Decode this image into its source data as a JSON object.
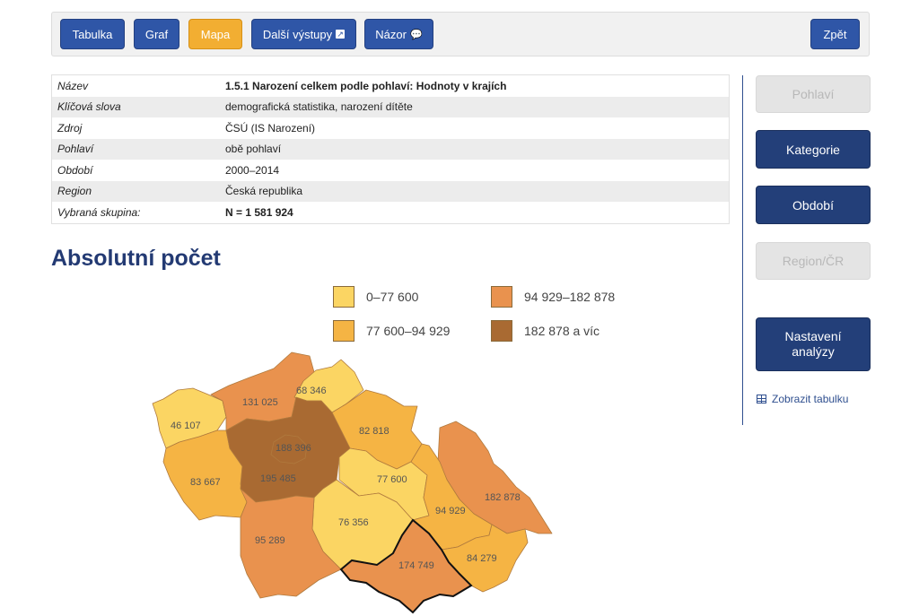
{
  "toolbar": {
    "tabulka": "Tabulka",
    "graf": "Graf",
    "mapa": "Mapa",
    "dalsi": "Další výstupy",
    "nazor": "Názor",
    "zpet": "Zpět"
  },
  "info": [
    {
      "key": "Název",
      "value": "1.5.1 Narození celkem podle pohlaví: Hodnoty v krajích"
    },
    {
      "key": "Klíčová slova",
      "value": "demografická statistika, narození dítěte"
    },
    {
      "key": "Zdroj",
      "value": "ČSÚ (IS Narození)"
    },
    {
      "key": "Pohlaví",
      "value": "obě pohlaví"
    },
    {
      "key": "Období",
      "value": "2000–2014"
    },
    {
      "key": "Region",
      "value": "Česká republika"
    },
    {
      "key": "Vybraná skupina:",
      "value": "N = 1 581 924"
    }
  ],
  "heading": "Absolutní počet",
  "legend": [
    {
      "label": "0–77 600",
      "color": "#fbd563"
    },
    {
      "label": "94 929–182 878",
      "color": "#e9924e"
    },
    {
      "label": "77 600–94 929",
      "color": "#f5b444"
    },
    {
      "label": "182 878 a víc",
      "color": "#a96a32"
    }
  ],
  "regions": [
    {
      "name": "Karlovarský",
      "value": "46 107",
      "color": "#fbd563"
    },
    {
      "name": "Ústecký",
      "value": "131 025",
      "color": "#e9924e"
    },
    {
      "name": "Liberecký",
      "value": "68 346",
      "color": "#fbd563"
    },
    {
      "name": "Královéhradecký",
      "value": "82 818",
      "color": "#f5b444"
    },
    {
      "name": "Plzeňský",
      "value": "83 667",
      "color": "#f5b444"
    },
    {
      "name": "Středočeský",
      "value": "195 485",
      "color": "#a96a32"
    },
    {
      "name": "Hlavní město Praha",
      "value": "188 396",
      "color": "#a96a32"
    },
    {
      "name": "Pardubický",
      "value": "77 600",
      "color": "#fbd563"
    },
    {
      "name": "Moravskoslezský",
      "value": "182 878",
      "color": "#e9924e"
    },
    {
      "name": "Olomoucký",
      "value": "94 929",
      "color": "#f5b444"
    },
    {
      "name": "Vysočina",
      "value": "76 356",
      "color": "#fbd563"
    },
    {
      "name": "Jihočeský",
      "value": "95 289",
      "color": "#e9924e"
    },
    {
      "name": "Jihomoravský",
      "value": "174 749",
      "color": "#e9924e"
    },
    {
      "name": "Zlínský",
      "value": "84 279",
      "color": "#f5b444"
    }
  ],
  "sidebar": {
    "pohlavi": "Pohlaví",
    "kategorie": "Kategorie",
    "obdobi": "Období",
    "region": "Region/ČR",
    "nastaveni": "Nastavení analýzy",
    "tablelink": "Zobrazit tabulku"
  }
}
